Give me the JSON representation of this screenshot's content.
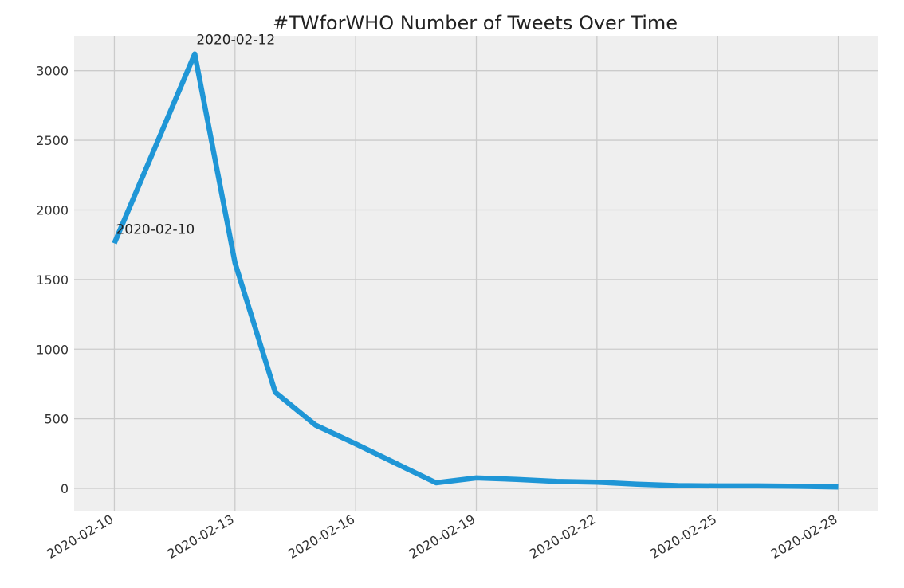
{
  "chart_data": {
    "type": "line",
    "title": "#TWforWHO Number of Tweets Over Time",
    "xlabel": "",
    "ylabel": "",
    "x_ticks": [
      "2020-02-10",
      "2020-02-13",
      "2020-02-16",
      "2020-02-19",
      "2020-02-22",
      "2020-02-25",
      "2020-02-28"
    ],
    "y_ticks": [
      "0",
      "500",
      "1000",
      "1500",
      "2000",
      "2500",
      "3000"
    ],
    "ylim": [
      -160,
      3250
    ],
    "xlim": [
      "2020-02-09",
      "2020-02-29"
    ],
    "grid": true,
    "series": [
      {
        "color": "#1f96d6",
        "x": [
          "2020-02-10",
          "2020-02-12",
          "2020-02-13",
          "2020-02-14",
          "2020-02-15",
          "2020-02-16",
          "2020-02-17",
          "2020-02-18",
          "2020-02-19",
          "2020-02-20",
          "2020-02-21",
          "2020-02-22",
          "2020-02-23",
          "2020-02-24",
          "2020-02-25",
          "2020-02-26",
          "2020-02-27",
          "2020-02-28"
        ],
        "values": [
          1760,
          3120,
          1620,
          690,
          455,
          320,
          180,
          40,
          75,
          65,
          50,
          45,
          30,
          20,
          18,
          18,
          15,
          10
        ]
      }
    ],
    "annotations": [
      {
        "text": "2020-02-12",
        "x": "2020-02-12",
        "y": 3120
      },
      {
        "text": "2020-02-10",
        "x": "2020-02-10",
        "y": 1760
      }
    ]
  }
}
